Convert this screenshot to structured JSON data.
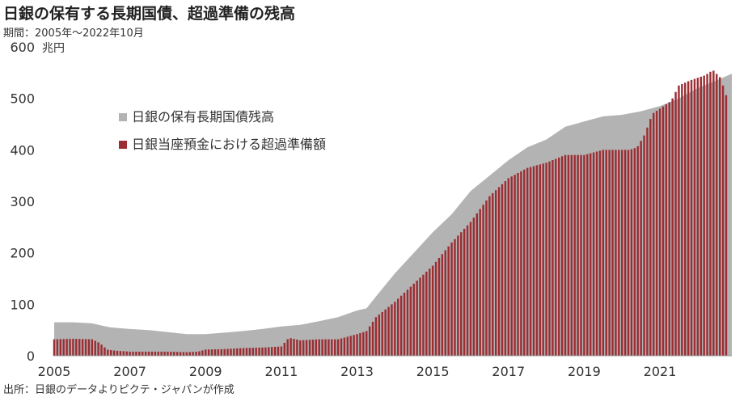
{
  "title": "日銀の保有する長期国債、超過準備の残高",
  "subtitle": "期間：2005年～2022年10月",
  "source": "出所：日銀のデータよりピクテ・ジャパンが作成",
  "colors": {
    "holdings": "#b3b3b3",
    "reserves": "#9b2d33",
    "axis": "#999999"
  },
  "chart_data": {
    "type": "bar",
    "unit_label": "兆円",
    "ylim": [
      0,
      600
    ],
    "yticks": [
      0,
      100,
      200,
      300,
      400,
      500,
      600
    ],
    "xlim": [
      2005.0,
      2022.9
    ],
    "xtick_labels": [
      "2005",
      "2007",
      "2009",
      "2011",
      "2013",
      "2015",
      "2017",
      "2019",
      "2021"
    ],
    "grid": false,
    "legend_position": "upper-left",
    "series": [
      {
        "name": "日銀の保有長期国債残高",
        "render": "area",
        "x": [
          2005.0,
          2005.5,
          2006.0,
          2006.3,
          2006.5,
          2007.0,
          2007.5,
          2008.0,
          2008.5,
          2009.0,
          2009.5,
          2010.0,
          2010.5,
          2011.0,
          2011.5,
          2012.0,
          2012.5,
          2013.0,
          2013.25,
          2013.5,
          2014.0,
          2014.5,
          2015.0,
          2015.5,
          2016.0,
          2016.5,
          2017.0,
          2017.5,
          2018.0,
          2018.5,
          2019.0,
          2019.5,
          2020.0,
          2020.5,
          2021.0,
          2021.5,
          2022.0,
          2022.5,
          2022.9
        ],
        "values": [
          65,
          65,
          63,
          58,
          55,
          52,
          50,
          46,
          42,
          42,
          45,
          48,
          52,
          57,
          60,
          67,
          75,
          88,
          92,
          115,
          160,
          200,
          240,
          275,
          320,
          350,
          380,
          405,
          420,
          445,
          455,
          465,
          468,
          475,
          485,
          500,
          520,
          535,
          548
        ]
      },
      {
        "name": "日銀当座預金における超過準備額",
        "render": "bars",
        "x": [
          2005.0,
          2005.5,
          2006.0,
          2006.2,
          2006.4,
          2006.6,
          2007.0,
          2007.5,
          2008.0,
          2008.5,
          2008.8,
          2009.0,
          2009.5,
          2010.0,
          2010.5,
          2011.0,
          2011.2,
          2011.5,
          2012.0,
          2012.5,
          2013.0,
          2013.25,
          2013.5,
          2014.0,
          2014.5,
          2015.0,
          2015.5,
          2016.0,
          2016.5,
          2017.0,
          2017.5,
          2018.0,
          2018.5,
          2019.0,
          2019.5,
          2020.0,
          2020.2,
          2020.4,
          2020.6,
          2020.8,
          2021.0,
          2021.3,
          2021.5,
          2021.8,
          2022.0,
          2022.2,
          2022.4,
          2022.6,
          2022.8
        ],
        "values": [
          32,
          33,
          32,
          25,
          12,
          10,
          8,
          8,
          8,
          7,
          8,
          12,
          13,
          15,
          16,
          18,
          35,
          30,
          32,
          32,
          42,
          48,
          75,
          105,
          140,
          175,
          220,
          260,
          310,
          345,
          365,
          375,
          390,
          390,
          400,
          400,
          400,
          405,
          430,
          470,
          480,
          495,
          525,
          535,
          540,
          545,
          555,
          540,
          495
        ]
      }
    ]
  }
}
